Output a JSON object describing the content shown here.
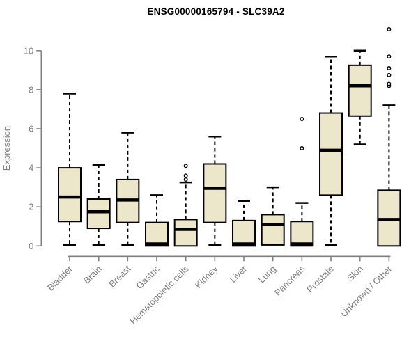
{
  "chart_data": {
    "type": "boxplot",
    "title": "ENSG00000165794 - SLC39A2",
    "ylabel": "Expression",
    "xlabel": "",
    "yticks": [
      0,
      2,
      4,
      6,
      8,
      10
    ],
    "ylim": [
      0,
      11.2
    ],
    "grid": false,
    "legend": "none",
    "categories": [
      "Bladder",
      "Brain",
      "Breast",
      "Gastric",
      "Hematopoietic cells",
      "Kidney",
      "Liver",
      "Lung",
      "Pancreas",
      "Prostate",
      "Skin",
      "Unknown / Other"
    ],
    "series": [
      {
        "name": "Bladder",
        "low": 0.05,
        "q1": 1.25,
        "median": 2.5,
        "q3": 4.0,
        "high": 7.8,
        "outliers": []
      },
      {
        "name": "Brain",
        "low": 0.05,
        "q1": 0.9,
        "median": 1.75,
        "q3": 2.4,
        "high": 4.15,
        "outliers": []
      },
      {
        "name": "Breast",
        "low": 0.05,
        "q1": 1.2,
        "median": 2.35,
        "q3": 3.4,
        "high": 5.8,
        "outliers": []
      },
      {
        "name": "Gastric",
        "low": 0.0,
        "q1": 0.0,
        "median": 0.1,
        "q3": 1.2,
        "high": 2.6,
        "outliers": []
      },
      {
        "name": "Hematopoietic cells",
        "low": 0.0,
        "q1": 0.0,
        "median": 0.85,
        "q3": 1.35,
        "high": 3.25,
        "outliers": [
          3.4,
          3.6,
          4.1
        ]
      },
      {
        "name": "Kidney",
        "low": 0.05,
        "q1": 1.2,
        "median": 2.95,
        "q3": 4.2,
        "high": 5.6,
        "outliers": []
      },
      {
        "name": "Liver",
        "low": 0.0,
        "q1": 0.0,
        "median": 0.1,
        "q3": 1.3,
        "high": 2.3,
        "outliers": []
      },
      {
        "name": "Lung",
        "low": 0.05,
        "q1": 0.05,
        "median": 1.1,
        "q3": 1.6,
        "high": 3.0,
        "outliers": []
      },
      {
        "name": "Pancreas",
        "low": 0.0,
        "q1": 0.0,
        "median": 0.1,
        "q3": 1.25,
        "high": 2.2,
        "outliers": [
          5.0,
          6.5
        ]
      },
      {
        "name": "Prostate",
        "low": 0.05,
        "q1": 2.6,
        "median": 4.9,
        "q3": 6.8,
        "high": 9.7,
        "outliers": []
      },
      {
        "name": "Skin",
        "low": 5.2,
        "q1": 6.65,
        "median": 8.2,
        "q3": 9.25,
        "high": 10.0,
        "outliers": []
      },
      {
        "name": "Unknown / Other",
        "low": 0.0,
        "q1": 0.0,
        "median": 1.35,
        "q3": 2.85,
        "high": 7.2,
        "outliers": [
          8.2,
          8.3,
          8.75,
          9.1,
          9.7,
          11.1
        ]
      }
    ],
    "colors": {
      "box_fill": "#ece7cb",
      "box_stroke": "#000000",
      "median": "#000000",
      "whisker": "#000000",
      "outlier_stroke": "#000000",
      "outlier_fill": "#ffffff",
      "axis": "#808080",
      "tick_label": "#808080",
      "axis_title": "#808080",
      "title": "#000000",
      "background": "#ffffff"
    }
  }
}
